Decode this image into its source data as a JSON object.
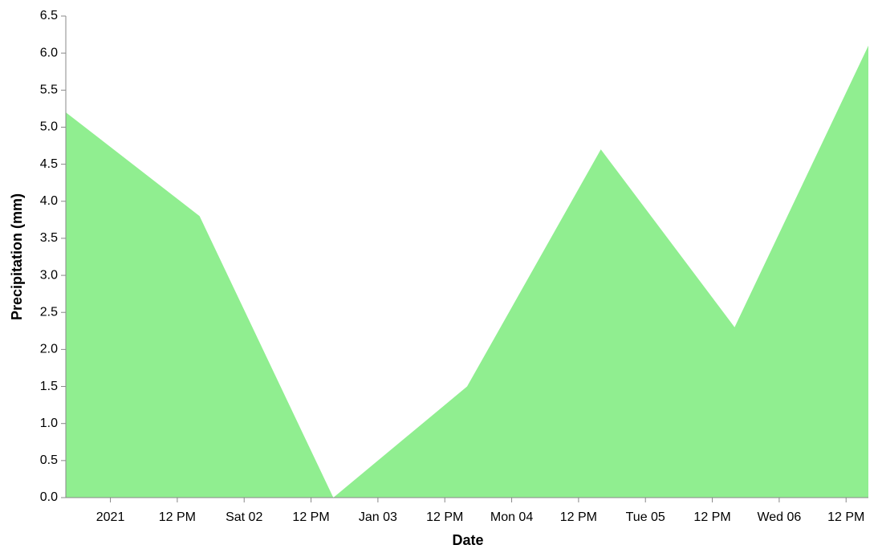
{
  "chart_data": {
    "type": "area",
    "x_label": "Date",
    "y_label": "Precipitation (mm)",
    "x": [
      "2020-12-31T16:00",
      "2021-01-01T16:00",
      "2021-01-02T16:00",
      "2021-01-03T16:00",
      "2021-01-04T16:00",
      "2021-01-05T16:00",
      "2021-01-06T16:00"
    ],
    "values": [
      5.2,
      3.8,
      0,
      1.5,
      4.7,
      2.3,
      6.1
    ],
    "color": "#90ee90",
    "xlim": [
      "2020-12-31T16:00",
      "2021-01-06T16:00"
    ],
    "xticks": [
      {
        "value": "2021-01-01T00:00",
        "label": "2021"
      },
      {
        "value": "2021-01-01T12:00",
        "label": "12 PM"
      },
      {
        "value": "2021-01-02T00:00",
        "label": "Sat 02"
      },
      {
        "value": "2021-01-02T12:00",
        "label": "12 PM"
      },
      {
        "value": "2021-01-03T00:00",
        "label": "Jan 03"
      },
      {
        "value": "2021-01-03T12:00",
        "label": "12 PM"
      },
      {
        "value": "2021-01-04T00:00",
        "label": "Mon 04"
      },
      {
        "value": "2021-01-04T12:00",
        "label": "12 PM"
      },
      {
        "value": "2021-01-05T00:00",
        "label": "Tue 05"
      },
      {
        "value": "2021-01-05T12:00",
        "label": "12 PM"
      },
      {
        "value": "2021-01-06T00:00",
        "label": "Wed 06"
      },
      {
        "value": "2021-01-06T12:00",
        "label": "12 PM"
      }
    ],
    "ylim": [
      0,
      6.5
    ],
    "yticks": [
      {
        "value": 0,
        "label": "0.0"
      },
      0.5,
      {
        "value": 1,
        "label": "1.0"
      },
      1.5,
      {
        "value": 2,
        "label": "2.0"
      },
      2.5,
      {
        "value": 3,
        "label": "3.0"
      },
      3.5,
      {
        "value": 4,
        "label": "4.0"
      },
      4.5,
      {
        "value": 5,
        "label": "5.0"
      },
      5.5,
      {
        "value": 6,
        "label": "6.0"
      },
      6.5
    ],
    "grid": false
  }
}
